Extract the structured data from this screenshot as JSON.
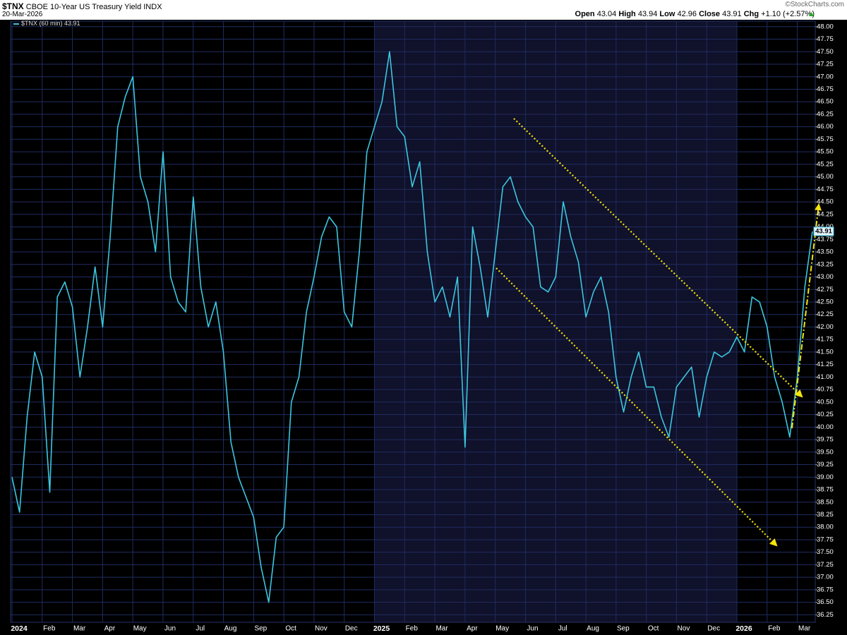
{
  "chart_data": {
    "type": "line",
    "symbol": "$TNX",
    "title": "CBOE 10-Year US Treasury Yield INDX",
    "date": "20-Mar-2026",
    "watermark": "©StockCharts.com",
    "quote": {
      "open_label": "Open",
      "open": 43.04,
      "high_label": "High",
      "high": 43.94,
      "low_label": "Low",
      "low": 42.96,
      "close_label": "Close",
      "close": 43.91,
      "chg_label": "Chg",
      "chg": "+1.10 (+2.57%)"
    },
    "categories": [
      "2024",
      null,
      null,
      null,
      "Feb",
      null,
      null,
      null,
      "Mar",
      null,
      null,
      null,
      "Apr",
      null,
      null,
      null,
      "May",
      null,
      null,
      null,
      "Jun",
      null,
      null,
      null,
      "Jul",
      null,
      null,
      null,
      "Aug",
      null,
      null,
      null,
      "Sep",
      null,
      null,
      null,
      "Oct",
      null,
      null,
      null,
      "Nov",
      null,
      null,
      null,
      "Dec",
      null,
      null,
      null,
      "2025",
      null,
      null,
      null,
      "Feb",
      null,
      null,
      null,
      "Mar",
      null,
      null,
      null,
      "Apr",
      null,
      null,
      null,
      "May",
      null,
      null,
      null,
      "Jun",
      null,
      null,
      null,
      "Jul",
      null,
      null,
      null,
      "Aug",
      null,
      null,
      null,
      "Sep",
      null,
      null,
      null,
      "Oct",
      null,
      null,
      null,
      "Nov",
      null,
      null,
      null,
      "Dec",
      null,
      null,
      null,
      "2026",
      null,
      null,
      null,
      "Feb",
      null,
      null,
      null,
      "Mar",
      null,
      null
    ],
    "series": [
      {
        "name": "$TNX (60 min)",
        "color": "#3cc6df",
        "values": [
          39.0,
          38.3,
          40.2,
          41.5,
          41.0,
          38.7,
          42.6,
          42.9,
          42.4,
          41.0,
          42.0,
          43.2,
          42.0,
          43.8,
          46.0,
          46.6,
          47.0,
          45.0,
          44.5,
          43.5,
          45.5,
          43.0,
          42.5,
          42.3,
          44.6,
          42.8,
          42.0,
          42.5,
          41.5,
          39.7,
          39.0,
          38.6,
          38.2,
          37.2,
          36.5,
          37.8,
          38.0,
          40.5,
          41.0,
          42.3,
          43.0,
          43.8,
          44.2,
          44.0,
          42.3,
          42.0,
          43.5,
          45.5,
          46.0,
          46.5,
          47.5,
          46.0,
          45.8,
          44.8,
          45.3,
          43.5,
          42.5,
          42.8,
          42.2,
          43.0,
          39.6,
          44.0,
          43.2,
          42.2,
          43.5,
          44.8,
          45.0,
          44.5,
          44.2,
          44.0,
          42.8,
          42.7,
          43.0,
          44.5,
          43.8,
          43.3,
          42.2,
          42.7,
          43.0,
          42.3,
          41.0,
          40.3,
          41.0,
          41.5,
          40.8,
          40.8,
          40.2,
          39.8,
          40.8,
          41.0,
          41.2,
          40.2,
          41.0,
          41.5,
          41.4,
          41.5,
          41.8,
          41.5,
          42.6,
          42.5,
          42.0,
          41.0,
          40.5,
          39.8,
          41.0,
          42.8,
          43.91
        ]
      }
    ],
    "ylim": [
      36.1,
      48.11
    ],
    "yticks": [
      36.25,
      {
        "value": 36.5,
        "label": "36.50"
      },
      36.75,
      {
        "value": 37,
        "label": "37.00"
      },
      37.25,
      {
        "value": 37.5,
        "label": "37.50"
      },
      37.75,
      {
        "value": 38,
        "label": "38.00"
      },
      38.25,
      {
        "value": 38.5,
        "label": "38.50"
      },
      38.75,
      {
        "value": 39,
        "label": "39.00"
      },
      39.25,
      {
        "value": 39.5,
        "label": "39.50"
      },
      39.75,
      {
        "value": 40,
        "label": "40.00"
      },
      40.25,
      {
        "value": 40.5,
        "label": "40.50"
      },
      40.75,
      {
        "value": 41,
        "label": "41.00"
      },
      41.25,
      {
        "value": 41.5,
        "label": "41.50"
      },
      41.75,
      {
        "value": 42,
        "label": "42.00"
      },
      42.25,
      {
        "value": 42.5,
        "label": "42.50"
      },
      42.75,
      {
        "value": 43,
        "label": "43.00"
      },
      43.25,
      {
        "value": 43.5,
        "label": "43.50"
      },
      43.75,
      {
        "value": 44,
        "label": "44.00"
      },
      44.25,
      {
        "value": 44.5,
        "label": "44.50"
      },
      44.75,
      {
        "value": 45,
        "label": "45.00"
      },
      45.25,
      {
        "value": 45.5,
        "label": "45.50"
      },
      45.75,
      {
        "value": 46,
        "label": "46.00"
      },
      46.25,
      {
        "value": 46.5,
        "label": "46.50"
      },
      46.75,
      {
        "value": 47,
        "label": "47.00"
      },
      47.25,
      {
        "value": 47.5,
        "label": "47.50"
      },
      47.75,
      {
        "value": 48,
        "label": "48.00"
      }
    ],
    "grid": true
  }
}
